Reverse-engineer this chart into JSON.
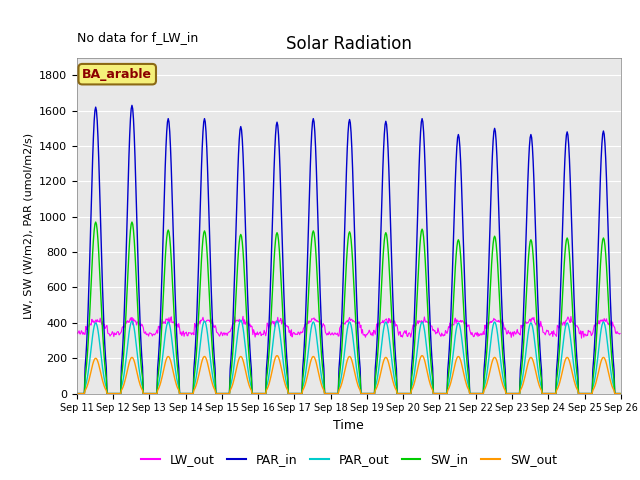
{
  "title": "Solar Radiation",
  "note": "No data for f_LW_in",
  "site_label": "BA_arable",
  "xlabel": "Time",
  "ylabel": "LW, SW (W/m2), PAR (umol/m2/s)",
  "ylim": [
    0,
    1900
  ],
  "yticks": [
    0,
    200,
    400,
    600,
    800,
    1000,
    1200,
    1400,
    1600,
    1800
  ],
  "n_days": 15,
  "dt_minutes": 30,
  "background_color": "#e8e8e8",
  "colors": {
    "LW_out": "#ff00ff",
    "PAR_in": "#0000cc",
    "PAR_out": "#00cccc",
    "SW_in": "#00cc00",
    "SW_out": "#ff9900"
  },
  "peak_PAR_in": [
    1620,
    1630,
    1555,
    1555,
    1510,
    1535,
    1555,
    1550,
    1540,
    1555,
    1465,
    1500,
    1465,
    1480,
    1485
  ],
  "peak_SW_in": [
    970,
    970,
    925,
    920,
    900,
    910,
    920,
    915,
    910,
    930,
    870,
    890,
    870,
    880,
    880
  ],
  "peak_PAR_out": [
    400,
    410,
    405,
    410,
    415,
    410,
    405,
    405,
    405,
    405,
    400,
    405,
    400,
    400,
    405
  ],
  "peak_SW_out": [
    200,
    205,
    210,
    210,
    210,
    215,
    210,
    210,
    205,
    215,
    210,
    205,
    205,
    205,
    205
  ],
  "LW_base": 355,
  "LW_daytime_bump": 60,
  "figsize": [
    6.4,
    4.8
  ],
  "dpi": 100
}
